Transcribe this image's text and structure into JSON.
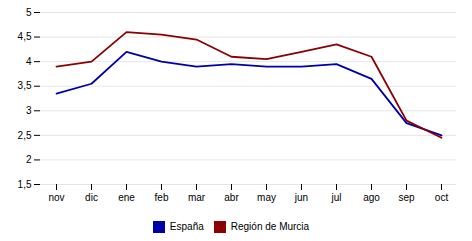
{
  "chart_data": {
    "type": "line",
    "categories": [
      "nov",
      "dic",
      "ene",
      "feb",
      "mar",
      "abr",
      "may",
      "jun",
      "jul",
      "ago",
      "sep",
      "oct"
    ],
    "series": [
      {
        "name": "España",
        "color": "#0000AA",
        "values": [
          3.35,
          3.55,
          4.2,
          4.0,
          3.9,
          3.95,
          3.9,
          3.9,
          3.95,
          3.65,
          2.75,
          2.5
        ]
      },
      {
        "name": "Región de Murcia",
        "color": "#8B0000",
        "values": [
          3.9,
          4.0,
          4.6,
          4.55,
          4.45,
          4.1,
          4.05,
          4.2,
          4.35,
          4.1,
          2.8,
          2.45
        ]
      }
    ],
    "ylim": [
      1.5,
      5.0
    ],
    "yticks": [
      {
        "value": 1.5,
        "label": "1,5"
      },
      2,
      {
        "value": 2.5,
        "label": "2,5"
      },
      3,
      {
        "value": 3.5,
        "label": "3,5"
      },
      4,
      {
        "value": 4.5,
        "label": "4,5"
      },
      5
    ],
    "grid": true,
    "legend": "bottom"
  }
}
